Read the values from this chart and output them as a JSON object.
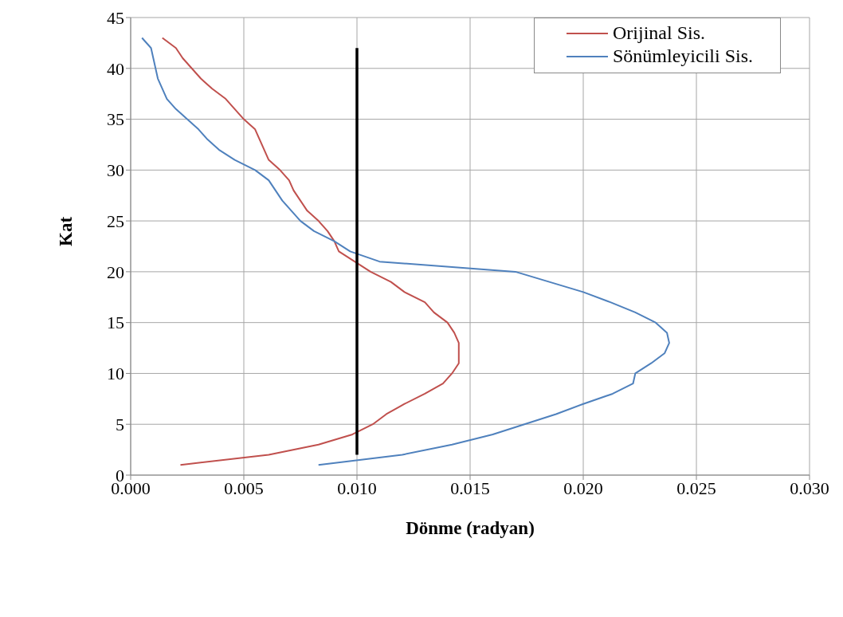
{
  "chart_data": {
    "type": "line",
    "xlabel": "Dönme (radyan)",
    "ylabel": "Kat",
    "xlim": [
      0,
      0.03
    ],
    "xticks": [
      {
        "value": 0,
        "label": "0.000"
      },
      {
        "value": 0.005,
        "label": "0.005"
      },
      {
        "value": 0.01,
        "label": "0.010"
      },
      {
        "value": 0.015,
        "label": "0.015"
      },
      {
        "value": 0.02,
        "label": "0.020"
      },
      {
        "value": 0.025,
        "label": "0.025"
      },
      {
        "value": 0.03,
        "label": "0.030"
      }
    ],
    "ylim": [
      0,
      45
    ],
    "yticks": [
      0,
      5,
      10,
      15,
      20,
      25,
      30,
      35,
      40,
      45
    ],
    "grid": true,
    "legend": "top right",
    "marker": "none",
    "line_style": "solid",
    "series": [
      {
        "name": "Orijinal Sis.",
        "color": "#c0504d",
        "x": [
          0.0022,
          0.0061,
          0.0083,
          0.0098,
          0.0107,
          0.0113,
          0.0121,
          0.013,
          0.0138,
          0.0142,
          0.0145,
          0.0145,
          0.0145,
          0.0143,
          0.014,
          0.0134,
          0.013,
          0.0121,
          0.0115,
          0.0106,
          0.0099,
          0.0092,
          0.009,
          0.0087,
          0.0083,
          0.0078,
          0.0075,
          0.0072,
          0.007,
          0.0066,
          0.0061,
          0.0059,
          0.0057,
          0.0055,
          0.005,
          0.0046,
          0.0042,
          0.0036,
          0.0031,
          0.0027,
          0.0023,
          0.002,
          0.0014
        ],
        "values": [
          1,
          2,
          3,
          4,
          5,
          6,
          7,
          8,
          9,
          10,
          11,
          12,
          13,
          14,
          15,
          16,
          17,
          18,
          19,
          20,
          21,
          22,
          23,
          24,
          25,
          26,
          27,
          28,
          29,
          30,
          31,
          32,
          33,
          34,
          35,
          36,
          37,
          38,
          39,
          40,
          41,
          42,
          43
        ]
      },
      {
        "name": "Sönümleyicili Sis.",
        "color": "#4f81bd",
        "x": [
          0.0083,
          0.012,
          0.0142,
          0.016,
          0.0174,
          0.0188,
          0.02,
          0.0213,
          0.0222,
          0.0223,
          0.023,
          0.0236,
          0.0238,
          0.0237,
          0.0232,
          0.0223,
          0.0212,
          0.02,
          0.0185,
          0.017,
          0.011,
          0.0097,
          0.009,
          0.0081,
          0.0075,
          0.0071,
          0.0067,
          0.0064,
          0.0061,
          0.0055,
          0.0046,
          0.0039,
          0.0034,
          0.003,
          0.0025,
          0.002,
          0.0016,
          0.0014,
          0.0012,
          0.0011,
          0.001,
          0.0009,
          0.0005
        ],
        "values": [
          1,
          2,
          3,
          4,
          5,
          6,
          7,
          8,
          9,
          10,
          11,
          12,
          13,
          14,
          15,
          16,
          17,
          18,
          19,
          20,
          21,
          22,
          23,
          24,
          25,
          26,
          27,
          28,
          29,
          30,
          31,
          32,
          33,
          34,
          35,
          36,
          37,
          38,
          39,
          40,
          41,
          42,
          43
        ]
      },
      {
        "color": "#000000",
        "x": [
          0.01,
          0.01
        ],
        "values": [
          2,
          42
        ]
      }
    ]
  }
}
